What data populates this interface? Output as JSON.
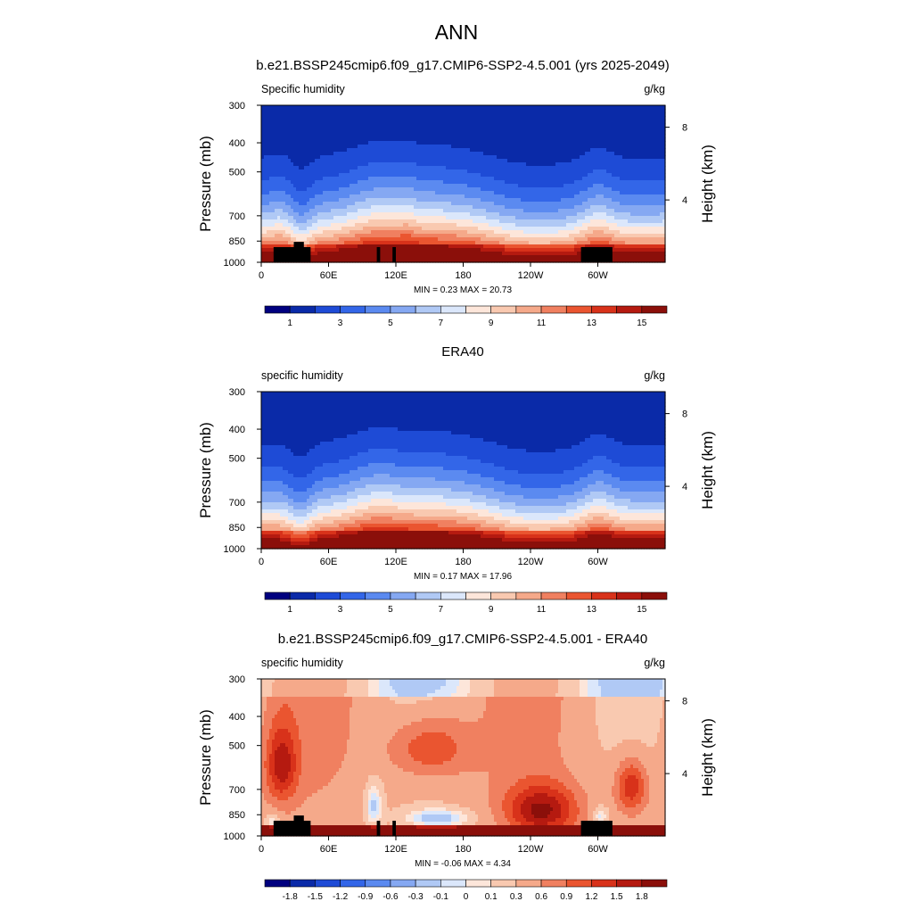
{
  "figure": {
    "title": "ANN"
  },
  "chart_data": [
    {
      "type": "heatmap",
      "title": "b.e21.BSSP245cmip6.f09_g17.CMIP6-SSP2-4.5.001 (yrs 2025-2049)",
      "left_label": "Specific humidity",
      "units": "g/kg",
      "ylabel": "Pressure (mb)",
      "ylabel_right": "Height (km)",
      "x_ticks": [
        "0",
        "60E",
        "120E",
        "180",
        "120W",
        "60W"
      ],
      "x_tick_lon": [
        0,
        60,
        120,
        180,
        240,
        300
      ],
      "xlim": [
        0,
        360
      ],
      "y_ticks": [
        "300",
        "400",
        "500",
        "700",
        "850",
        "1000"
      ],
      "y_tick_values": [
        300,
        400,
        500,
        700,
        850,
        1000
      ],
      "ylim": [
        1000,
        300
      ],
      "y_scale": "log",
      "right_ticks": [
        "8",
        "4"
      ],
      "right_tick_pressure": [
        355,
        620
      ],
      "stats": "MIN =   0.23  MAX =  20.73",
      "min": 0.23,
      "max": 20.73,
      "colorbar": {
        "labels": [
          "1",
          "3",
          "5",
          "7",
          "9",
          "11",
          "13",
          "15"
        ],
        "levels": [
          0,
          1,
          2,
          3,
          4,
          5,
          6,
          7,
          8,
          9,
          10,
          11,
          12,
          13,
          14,
          15
        ],
        "colors": [
          "#00007f",
          "#0a2aa8",
          "#1e4bd6",
          "#3366e8",
          "#5b8af0",
          "#85a8f2",
          "#b0c9f5",
          "#dbe7fb",
          "#fde6da",
          "#f9c9b0",
          "#f5a98a",
          "#f08060",
          "#ea5530",
          "#d8321a",
          "#b51a10",
          "#8b0f0a"
        ]
      },
      "model": "model_total",
      "has_topography": true
    },
    {
      "type": "heatmap",
      "title": "ERA40",
      "left_label": "specific humidity",
      "units": "g/kg",
      "ylabel": "Pressure (mb)",
      "ylabel_right": "Height (km)",
      "x_ticks": [
        "0",
        "60E",
        "120E",
        "180",
        "120W",
        "60W"
      ],
      "x_tick_lon": [
        0,
        60,
        120,
        180,
        240,
        300
      ],
      "xlim": [
        0,
        360
      ],
      "y_ticks": [
        "300",
        "400",
        "500",
        "700",
        "850",
        "1000"
      ],
      "y_tick_values": [
        300,
        400,
        500,
        700,
        850,
        1000
      ],
      "ylim": [
        1000,
        300
      ],
      "y_scale": "log",
      "right_ticks": [
        "8",
        "4"
      ],
      "right_tick_pressure": [
        355,
        620
      ],
      "stats": "MIN =   0.17  MAX =  17.96",
      "min": 0.17,
      "max": 17.96,
      "colorbar": {
        "labels": [
          "1",
          "3",
          "5",
          "7",
          "9",
          "11",
          "13",
          "15"
        ],
        "levels": [
          0,
          1,
          2,
          3,
          4,
          5,
          6,
          7,
          8,
          9,
          10,
          11,
          12,
          13,
          14,
          15
        ],
        "colors": [
          "#00007f",
          "#0a2aa8",
          "#1e4bd6",
          "#3366e8",
          "#5b8af0",
          "#85a8f2",
          "#b0c9f5",
          "#dbe7fb",
          "#fde6da",
          "#f9c9b0",
          "#f5a98a",
          "#f08060",
          "#ea5530",
          "#d8321a",
          "#b51a10",
          "#8b0f0a"
        ]
      },
      "model": "obs_total",
      "has_topography": false
    },
    {
      "type": "heatmap",
      "title": "b.e21.BSSP245cmip6.f09_g17.CMIP6-SSP2-4.5.001 - ERA40",
      "left_label": "specific humidity",
      "units": "g/kg",
      "ylabel": "Pressure (mb)",
      "ylabel_right": "Height (km)",
      "x_ticks": [
        "0",
        "60E",
        "120E",
        "180",
        "120W",
        "60W"
      ],
      "x_tick_lon": [
        0,
        60,
        120,
        180,
        240,
        300
      ],
      "xlim": [
        0,
        360
      ],
      "y_ticks": [
        "300",
        "400",
        "500",
        "700",
        "850",
        "1000"
      ],
      "y_tick_values": [
        300,
        400,
        500,
        700,
        850,
        1000
      ],
      "ylim": [
        1000,
        300
      ],
      "y_scale": "log",
      "right_ticks": [
        "8",
        "4"
      ],
      "right_tick_pressure": [
        355,
        620
      ],
      "stats": "MIN =  -0.06  MAX =   4.34",
      "min": -0.06,
      "max": 4.34,
      "colorbar": {
        "labels": [
          "-1.8",
          "-1.5",
          "-1.2",
          "-0.9",
          "-0.6",
          "-0.3",
          "-0.1",
          "0",
          "0.1",
          "0.3",
          "0.6",
          "0.9",
          "1.2",
          "1.5",
          "1.8"
        ],
        "levels": [
          -1.8,
          -1.5,
          -1.2,
          -0.9,
          -0.6,
          -0.3,
          -0.1,
          0,
          0.1,
          0.3,
          0.6,
          0.9,
          1.2,
          1.5,
          1.8
        ],
        "colors": [
          "#00007f",
          "#0a2aa8",
          "#1e4bd6",
          "#3366e8",
          "#5b8af0",
          "#85a8f2",
          "#b0c9f5",
          "#dbe7fb",
          "#fde6da",
          "#f9c9b0",
          "#f5a98a",
          "#f08060",
          "#ea5530",
          "#d8321a",
          "#b51a10",
          "#8b0f0a"
        ]
      },
      "model": "difference",
      "has_topography": true
    }
  ]
}
